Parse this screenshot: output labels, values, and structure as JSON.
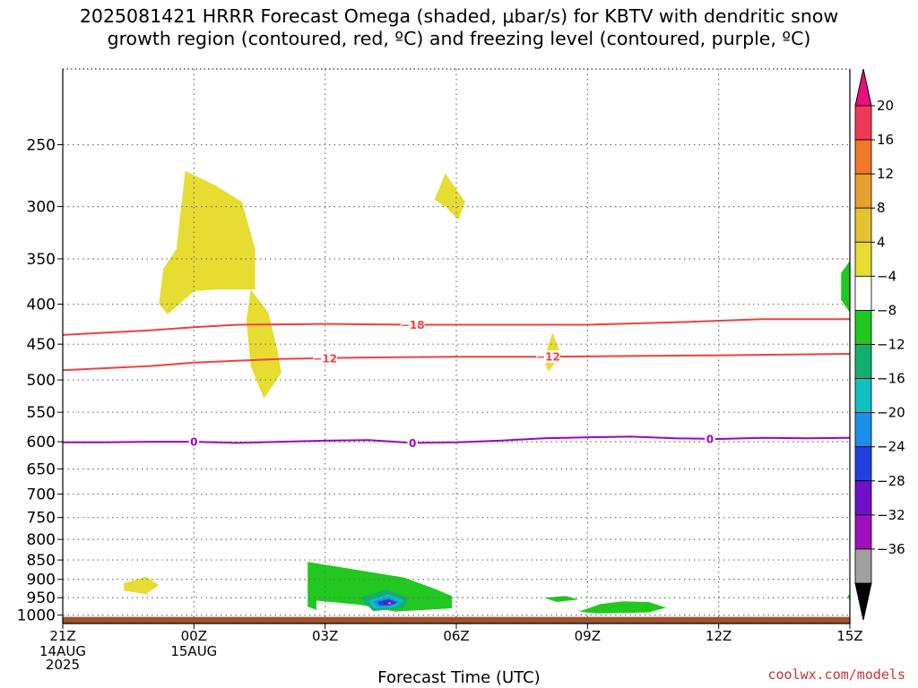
{
  "title": {
    "line1": "2025081421 HRRR Forecast Omega (shaded, μbar/s) for KBTV with dendritic snow",
    "line2": "growth region (contoured, red, ºC) and freezing level (contoured, purple, ºC)"
  },
  "x_axis_title": "Forecast Time (UTC)",
  "credit": "coolwx.com/models",
  "colors": {
    "dgz_contour": "#f04040",
    "freezing_contour": "#a000c8",
    "ground": "#a0522d",
    "grid": "#707070"
  },
  "chart_data": {
    "type": "heatmap",
    "xlabel": "Forecast Time (UTC)",
    "ylabel": "",
    "x_ticks": [
      {
        "hour": 0,
        "label": "21Z",
        "sub": [
          "14AUG",
          "2025"
        ]
      },
      {
        "hour": 3,
        "label": "00Z",
        "sub": [
          "15AUG"
        ]
      },
      {
        "hour": 6,
        "label": "03Z",
        "sub": []
      },
      {
        "hour": 9,
        "label": "06Z",
        "sub": []
      },
      {
        "hour": 12,
        "label": "09Z",
        "sub": []
      },
      {
        "hour": 15,
        "label": "12Z",
        "sub": []
      },
      {
        "hour": 18,
        "label": "15Z",
        "sub": []
      }
    ],
    "xlim": [
      0,
      18
    ],
    "y_levels": [
      250,
      300,
      350,
      400,
      450,
      500,
      550,
      600,
      650,
      700,
      750,
      800,
      850,
      900,
      950,
      1000
    ],
    "ylim": [
      200,
      1025
    ],
    "grid": true,
    "colorbar": {
      "ticks": [
        "20",
        "16",
        "12",
        "8",
        "4",
        "−4",
        "−8",
        "−12",
        "−16",
        "−20",
        "−24",
        "−28",
        "−32",
        "−36"
      ],
      "colors": [
        "#f03858",
        "#f07828",
        "#e8a030",
        "#e8c030",
        "#e6dc32",
        "#ffffff",
        "#20c820",
        "#10b070",
        "#10c0c0",
        "#1890e8",
        "#2040e0",
        "#7010c8",
        "#a010c0",
        "#a0a0a0"
      ],
      "top_arrow_color": "#e8107a",
      "bottom_arrow_color": "#000000"
    },
    "omega_regions": [
      {
        "color": "#e6dc32",
        "points": [
          [
            2.2,
            400
          ],
          [
            2.3,
            360
          ],
          [
            2.6,
            340
          ],
          [
            2.8,
            270
          ],
          [
            3.5,
            282
          ],
          [
            4.1,
            296
          ],
          [
            4.4,
            340
          ],
          [
            4.4,
            383
          ],
          [
            3.5,
            383
          ],
          [
            3,
            385
          ],
          [
            2.4,
            412
          ]
        ]
      },
      {
        "color": "#e6dc32",
        "points": [
          [
            4.3,
            383
          ],
          [
            4.7,
            410
          ],
          [
            4.9,
            455
          ],
          [
            5.0,
            490
          ],
          [
            4.6,
            528
          ],
          [
            4.3,
            480
          ],
          [
            4.2,
            420
          ]
        ]
      },
      {
        "color": "#e6dc32",
        "points": [
          [
            8.5,
            294
          ],
          [
            8.75,
            272
          ],
          [
            9.2,
            296
          ],
          [
            9.05,
            312
          ],
          [
            8.75,
            300
          ]
        ]
      },
      {
        "color": "#e6dc32",
        "points": [
          [
            11.0,
            470
          ],
          [
            11.2,
            435
          ],
          [
            11.4,
            465
          ],
          [
            11.1,
            488
          ]
        ]
      },
      {
        "color": "#e6dc32",
        "points": [
          [
            1.4,
            910
          ],
          [
            1.9,
            893
          ],
          [
            2.2,
            915
          ],
          [
            1.9,
            940
          ],
          [
            1.4,
            930
          ]
        ]
      },
      {
        "color": "#20c820",
        "points": [
          [
            5.6,
            855
          ],
          [
            7.8,
            895
          ],
          [
            8.5,
            925
          ],
          [
            8.9,
            945
          ],
          [
            8.9,
            980
          ],
          [
            7.6,
            990
          ],
          [
            6.8,
            970
          ],
          [
            5.8,
            958
          ],
          [
            5.8,
            985
          ],
          [
            5.6,
            975
          ]
        ]
      },
      {
        "color": "#20c820",
        "points": [
          [
            11.0,
            950
          ],
          [
            11.5,
            945
          ],
          [
            11.8,
            955
          ],
          [
            11.3,
            962
          ]
        ]
      },
      {
        "color": "#20c820",
        "points": [
          [
            11.8,
            990
          ],
          [
            12.3,
            968
          ],
          [
            12.8,
            960
          ],
          [
            13.4,
            962
          ],
          [
            13.8,
            978
          ],
          [
            13.4,
            992
          ],
          [
            12.2,
            995
          ]
        ]
      },
      {
        "color": "#20c820",
        "points": [
          [
            17.8,
            395
          ],
          [
            17.8,
            365
          ],
          [
            18.0,
            352
          ],
          [
            18.0,
            410
          ]
        ]
      },
      {
        "color": "#20c820",
        "points": [
          [
            17.95,
            945
          ],
          [
            18.0,
            940
          ],
          [
            18.0,
            962
          ]
        ]
      },
      {
        "color": "#10b070",
        "points": [
          [
            6.8,
            950
          ],
          [
            7.4,
            928
          ],
          [
            7.9,
            950
          ],
          [
            7.8,
            980
          ],
          [
            7.1,
            988
          ]
        ]
      },
      {
        "color": "#10c0c0",
        "points": [
          [
            7.0,
            958
          ],
          [
            7.45,
            940
          ],
          [
            7.8,
            958
          ],
          [
            7.6,
            977
          ],
          [
            7.1,
            980
          ]
        ]
      },
      {
        "color": "#1890e8",
        "points": [
          [
            7.1,
            960
          ],
          [
            7.45,
            948
          ],
          [
            7.7,
            962
          ],
          [
            7.5,
            974
          ],
          [
            7.2,
            975
          ]
        ]
      },
      {
        "color": "#2040e0",
        "points": [
          [
            7.2,
            962
          ],
          [
            7.45,
            954
          ],
          [
            7.65,
            964
          ],
          [
            7.45,
            972
          ],
          [
            7.25,
            971
          ]
        ]
      },
      {
        "color": "#7010c8",
        "points": [
          [
            7.3,
            964
          ],
          [
            7.45,
            958
          ],
          [
            7.6,
            966
          ],
          [
            7.45,
            971
          ]
        ]
      },
      {
        "color": "#a0a0a0",
        "points": [
          [
            7.42,
            965
          ],
          [
            7.48,
            962
          ],
          [
            7.52,
            966
          ],
          [
            7.47,
            969
          ]
        ]
      }
    ],
    "contours": [
      {
        "name": "dgz-minus18",
        "label": "−18",
        "label_hour": 8.0,
        "color": "#f04040",
        "points": [
          [
            0,
            438
          ],
          [
            2,
            432
          ],
          [
            3,
            428
          ],
          [
            4,
            425
          ],
          [
            6,
            424
          ],
          [
            8,
            425
          ],
          [
            10,
            425
          ],
          [
            12,
            425
          ],
          [
            14,
            422
          ],
          [
            16,
            418
          ],
          [
            18,
            418
          ]
        ]
      },
      {
        "name": "dgz-minus12",
        "label": "−12",
        "label_hour": 6.0,
        "color": "#f04040",
        "points": [
          [
            0,
            486
          ],
          [
            2,
            480
          ],
          [
            3,
            475
          ],
          [
            5,
            470
          ],
          [
            7,
            468
          ],
          [
            9,
            467
          ],
          [
            11,
            467
          ],
          [
            13,
            466
          ],
          [
            15,
            465
          ],
          [
            18,
            463
          ]
        ]
      },
      {
        "name": "dgz-minus12b",
        "label": "−12",
        "label_hour": 11.1,
        "color": "#f04040",
        "points": []
      },
      {
        "name": "freezing-0",
        "label": "0",
        "label_hour": 3.0,
        "color": "#a000c8",
        "points": [
          [
            0,
            601
          ],
          [
            1,
            601
          ],
          [
            2,
            600
          ],
          [
            3,
            600
          ],
          [
            4,
            602
          ],
          [
            5,
            600
          ],
          [
            6,
            598
          ],
          [
            7,
            597
          ],
          [
            8,
            602
          ],
          [
            9,
            601
          ],
          [
            10,
            598
          ],
          [
            11,
            594
          ],
          [
            12,
            592
          ],
          [
            13,
            591
          ],
          [
            14,
            594
          ],
          [
            15,
            595
          ],
          [
            16,
            593
          ],
          [
            17,
            594
          ],
          [
            18,
            593
          ]
        ]
      },
      {
        "name": "freezing-0b",
        "label": "0",
        "label_hour": 8.0,
        "color": "#a000c8",
        "points": []
      },
      {
        "name": "freezing-0c",
        "label": "0",
        "label_hour": 14.8,
        "color": "#a000c8",
        "points": []
      }
    ],
    "ground_level": 1000
  }
}
